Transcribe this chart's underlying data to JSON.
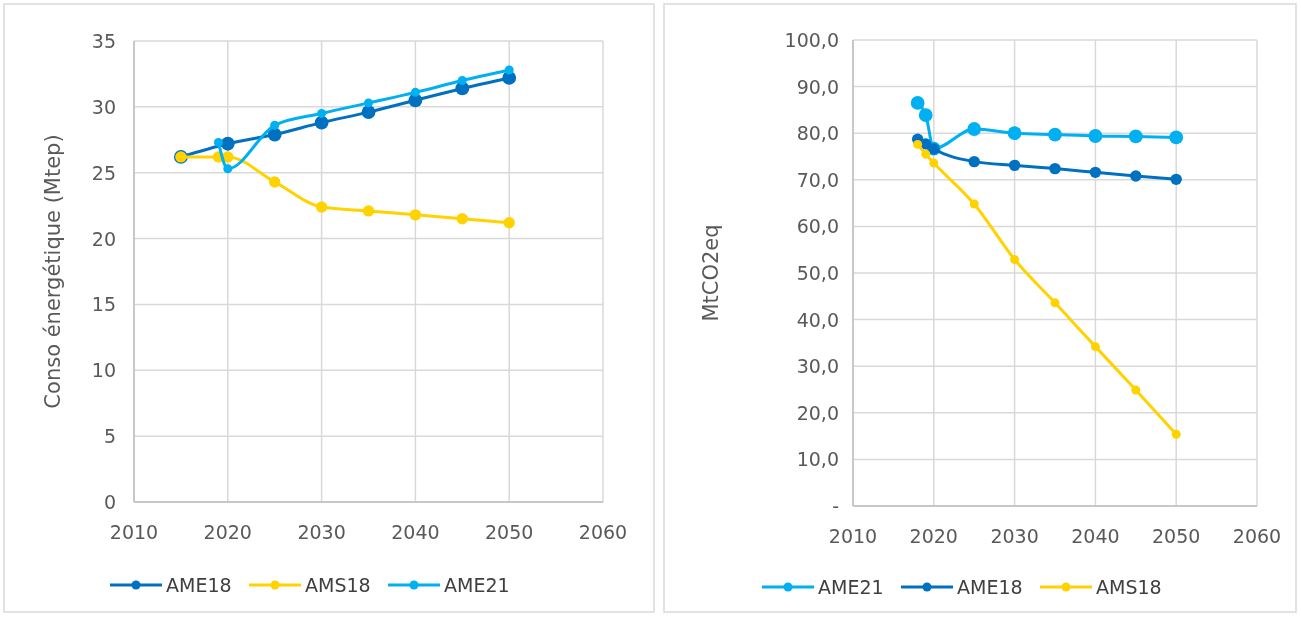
{
  "chart_data": [
    {
      "type": "line",
      "ylabel": "Conso énergétique (Mtep)",
      "xlim": [
        2010,
        2060
      ],
      "xticks": [
        2010,
        2020,
        2030,
        2040,
        2050,
        2060
      ],
      "ylim": [
        0,
        35
      ],
      "yticks": [
        0,
        5,
        10,
        15,
        20,
        25,
        30,
        35
      ],
      "grid": true,
      "legend": "bottom",
      "marker": "circle",
      "series": [
        {
          "name": "AME18",
          "color": "#0070c0",
          "x": [
            2015,
            2020,
            2025,
            2030,
            2035,
            2040,
            2045,
            2050
          ],
          "values": [
            26.2,
            27.2,
            27.9,
            28.8,
            29.6,
            30.5,
            31.4,
            32.2
          ]
        },
        {
          "name": "AMS18",
          "color": "#ffd200",
          "x": [
            2015,
            2019,
            2020,
            2025,
            2030,
            2035,
            2040,
            2045,
            2050
          ],
          "values": [
            26.2,
            26.2,
            26.2,
            24.3,
            22.4,
            22.1,
            21.8,
            21.5,
            21.2
          ]
        },
        {
          "name": "AME21",
          "color": "#00b0f0",
          "x": [
            2019,
            2020,
            2025,
            2030,
            2035,
            2040,
            2045,
            2050
          ],
          "values": [
            27.3,
            25.3,
            28.6,
            29.5,
            30.3,
            31.1,
            32.0,
            32.8
          ]
        }
      ]
    },
    {
      "type": "line",
      "ylabel": "MtCO2eq",
      "xlim": [
        2010,
        2060
      ],
      "xticks": [
        2010,
        2020,
        2030,
        2040,
        2050,
        2060
      ],
      "ylim": [
        0,
        100
      ],
      "yticks": [
        {
          "value": 0,
          "label": "-"
        },
        {
          "value": 10,
          "label": "10,0"
        },
        {
          "value": 20,
          "label": "20,0"
        },
        {
          "value": 30,
          "label": "30,0"
        },
        {
          "value": 40,
          "label": "40,0"
        },
        {
          "value": 50,
          "label": "50,0"
        },
        {
          "value": 60,
          "label": "60,0"
        },
        {
          "value": 70,
          "label": "70,0"
        },
        {
          "value": 80,
          "label": "80,0"
        },
        {
          "value": 90,
          "label": "90,0"
        },
        {
          "value": 100,
          "label": "100,0"
        }
      ],
      "grid": true,
      "legend": "bottom",
      "marker": "circle",
      "series": [
        {
          "name": "AME21",
          "color": "#00b0f0",
          "x": [
            2018,
            2019,
            2020,
            2025,
            2030,
            2035,
            2040,
            2045,
            2050
          ],
          "values": [
            86.5,
            83.9,
            76.7,
            80.9,
            80.0,
            79.7,
            79.4,
            79.3,
            79.1
          ]
        },
        {
          "name": "AME18",
          "color": "#0070c0",
          "x": [
            2018,
            2019,
            2020,
            2025,
            2030,
            2035,
            2040,
            2045,
            2050
          ],
          "values": [
            78.7,
            77.7,
            76.6,
            73.9,
            73.1,
            72.4,
            71.6,
            70.8,
            70.1
          ]
        },
        {
          "name": "AMS18",
          "color": "#ffd200",
          "x": [
            2018,
            2019,
            2020,
            2025,
            2030,
            2035,
            2040,
            2045,
            2050
          ],
          "values": [
            77.6,
            75.5,
            73.6,
            64.8,
            52.9,
            43.6,
            34.2,
            24.9,
            15.4
          ]
        }
      ]
    }
  ]
}
